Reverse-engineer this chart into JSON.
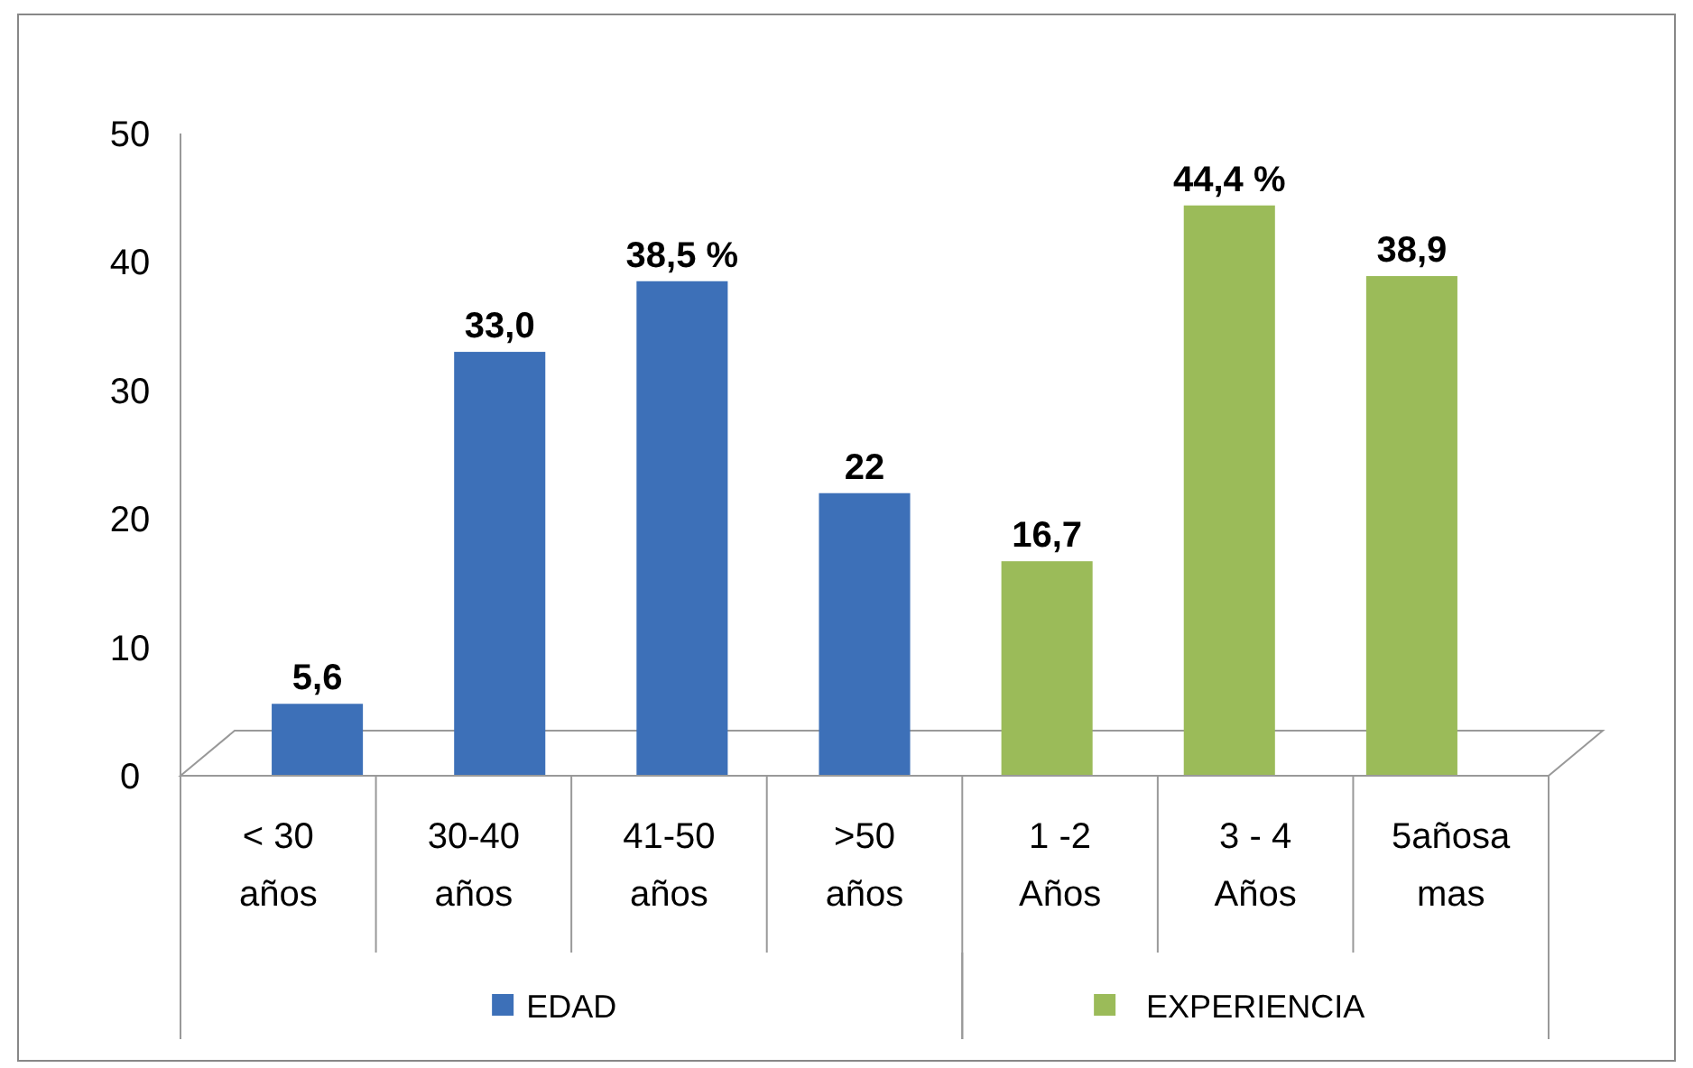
{
  "chart_data": {
    "type": "bar",
    "categories": [
      "< 30 años",
      "30-40 años",
      "41-50 años",
      ">50 años",
      "1 -2 Años",
      "3 - 4 Años",
      "5añosa mas"
    ],
    "series": [
      {
        "name": "EDAD",
        "color": "#3d70b8",
        "values": [
          5.6,
          33.0,
          38.5,
          22,
          null,
          null,
          null
        ],
        "value_labels": [
          "5,6",
          "33,0",
          "38,5 %",
          "22",
          null,
          null,
          null
        ]
      },
      {
        "name": "EXPERIENCIA",
        "color": "#9bbb59",
        "values": [
          null,
          null,
          null,
          null,
          16.7,
          44.4,
          38.9
        ],
        "value_labels": [
          null,
          null,
          null,
          null,
          "16,7",
          "44,4 %",
          "38,9"
        ]
      }
    ],
    "ylim": [
      0,
      50
    ],
    "yticks": [
      0,
      10,
      20,
      30,
      40,
      50
    ],
    "legend": "bottom"
  }
}
